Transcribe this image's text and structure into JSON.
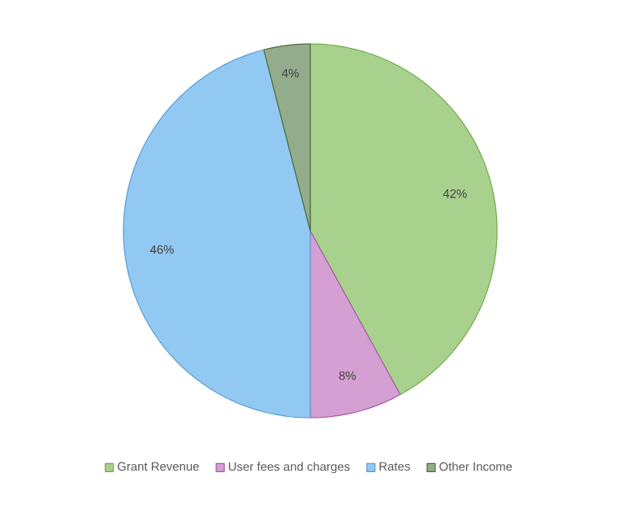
{
  "chart_data": {
    "type": "pie",
    "categories": [
      "Grant Revenue",
      "User fees and charges",
      "Rates",
      "Other Income"
    ],
    "values": [
      42,
      8,
      46,
      4
    ],
    "value_labels": [
      "42%",
      "8%",
      "46%",
      "4%"
    ],
    "colors": [
      "#a9d18e",
      "#d49fd2",
      "#92c9f2",
      "#93ad8c"
    ],
    "legend": "bottom"
  }
}
